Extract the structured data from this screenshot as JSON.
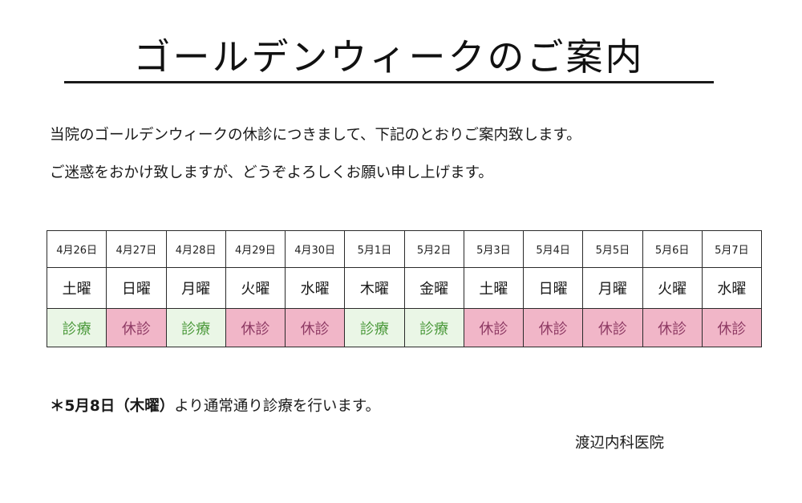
{
  "title": "ゴールデンウィークのご案内",
  "intro": {
    "line1": "当院のゴールデンウィークの休診につきまして、下記のとおりご案内致します。",
    "line2": "ご迷惑をおかけ致しますが、どうぞよろしくお願い申し上げます。"
  },
  "schedule": {
    "days": [
      {
        "date": "4月26日",
        "dow": "土曜",
        "status": "診療",
        "state": "open"
      },
      {
        "date": "4月27日",
        "dow": "日曜",
        "status": "休診",
        "state": "closed"
      },
      {
        "date": "4月28日",
        "dow": "月曜",
        "status": "診療",
        "state": "open"
      },
      {
        "date": "4月29日",
        "dow": "火曜",
        "status": "休診",
        "state": "closed"
      },
      {
        "date": "4月30日",
        "dow": "水曜",
        "status": "休診",
        "state": "closed"
      },
      {
        "date": "5月1日",
        "dow": "木曜",
        "status": "診療",
        "state": "open"
      },
      {
        "date": "5月2日",
        "dow": "金曜",
        "status": "診療",
        "state": "open"
      },
      {
        "date": "5月3日",
        "dow": "土曜",
        "status": "休診",
        "state": "closed"
      },
      {
        "date": "5月4日",
        "dow": "日曜",
        "status": "休診",
        "state": "closed"
      },
      {
        "date": "5月5日",
        "dow": "月曜",
        "status": "休診",
        "state": "closed"
      },
      {
        "date": "5月6日",
        "dow": "火曜",
        "status": "休診",
        "state": "closed"
      },
      {
        "date": "5月7日",
        "dow": "水曜",
        "status": "休診",
        "state": "closed"
      }
    ],
    "colors": {
      "open_bg": "#eaf6e6",
      "open_text": "#4c9a3c",
      "closed_bg": "#f1b6c8",
      "closed_text": "#8e3a64"
    }
  },
  "note": {
    "bold_part": "＊5月8日（木曜）",
    "rest": "より通常通り診療を行います。"
  },
  "clinic_name": "渡辺内科医院"
}
